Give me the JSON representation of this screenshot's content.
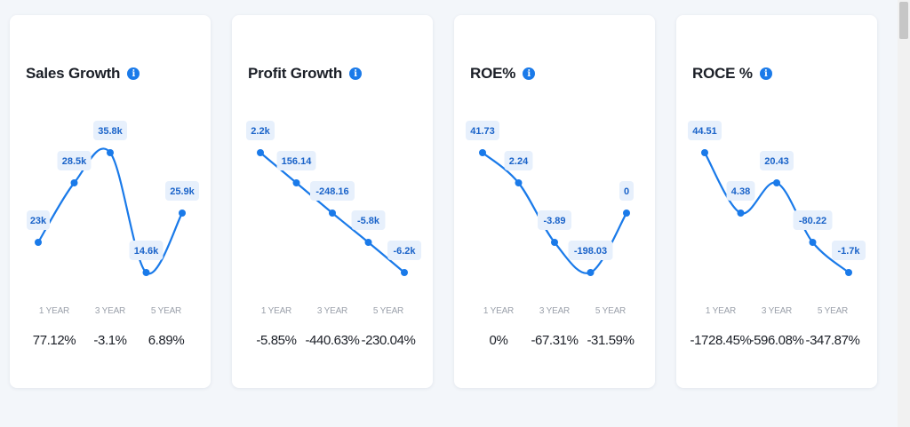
{
  "colors": {
    "line": "#1a7ae9",
    "label_bg": "#e7f0fc",
    "label_text": "#1a63c9",
    "card_bg": "#ffffff",
    "page_bg": "#f3f6fa"
  },
  "periods": [
    "1 YEAR",
    "3 YEAR",
    "5 YEAR"
  ],
  "cards": [
    {
      "title": "Sales Growth",
      "info_icon": "info-icon",
      "returns": [
        "77.12%",
        "-3.1%",
        "6.89%"
      ]
    },
    {
      "title": "Profit Growth",
      "info_icon": "info-icon",
      "returns": [
        "-5.85%",
        "-440.63%",
        "-230.04%"
      ]
    },
    {
      "title": "ROE%",
      "info_icon": "info-icon",
      "returns": [
        "0%",
        "-67.31%",
        "-31.59%"
      ]
    },
    {
      "title": "ROCE %",
      "info_icon": "info-icon",
      "returns": [
        "-1728.45%",
        "-596.08%",
        "-347.87%"
      ]
    }
  ],
  "chart_data": [
    {
      "type": "line",
      "title": "Sales Growth",
      "values": [
        23000,
        28500,
        35800,
        14600,
        25900
      ],
      "labels": [
        "23k",
        "28.5k",
        "35.8k",
        "14.6k",
        "25.9k"
      ],
      "ylim": [
        14600,
        35800
      ]
    },
    {
      "type": "line",
      "title": "Profit Growth",
      "values": [
        2200,
        156.14,
        -248.16,
        -5800,
        -6200
      ],
      "labels": [
        "2.2k",
        "156.14",
        "-248.16",
        "-5.8k",
        "-6.2k"
      ],
      "ylim": [
        -6200,
        2200
      ]
    },
    {
      "type": "line",
      "title": "ROE%",
      "values": [
        41.73,
        2.24,
        -3.89,
        -198.03,
        0
      ],
      "labels": [
        "41.73",
        "2.24",
        "-3.89",
        "-198.03",
        "0"
      ],
      "ylim": [
        -198.03,
        41.73
      ]
    },
    {
      "type": "line",
      "title": "ROCE %",
      "values": [
        44.51,
        4.38,
        20.43,
        -80.22,
        -1700
      ],
      "labels": [
        "44.51",
        "4.38",
        "20.43",
        "-80.22",
        "-1.7k"
      ],
      "ylim": [
        -1700,
        44.51
      ]
    }
  ]
}
